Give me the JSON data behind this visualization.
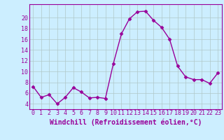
{
  "x": [
    0,
    1,
    2,
    3,
    4,
    5,
    6,
    7,
    8,
    9,
    10,
    11,
    12,
    13,
    14,
    15,
    16,
    17,
    18,
    19,
    20,
    21,
    22,
    23
  ],
  "y": [
    7.2,
    5.2,
    5.7,
    4.0,
    5.2,
    7.0,
    6.2,
    5.1,
    5.2,
    5.0,
    11.5,
    17.0,
    19.8,
    21.1,
    21.2,
    19.5,
    18.2,
    16.0,
    11.0,
    9.0,
    8.5,
    8.5,
    7.8,
    9.7
  ],
  "line_color": "#990099",
  "marker": "D",
  "markersize": 2.5,
  "linewidth": 1.0,
  "bg_color": "#cceeff",
  "grid_color": "#b0c8c8",
  "xlabel": "Windchill (Refroidissement éolien,°C)",
  "xlabel_fontsize": 7,
  "tick_fontsize": 6,
  "yticks": [
    4,
    6,
    8,
    10,
    12,
    14,
    16,
    18,
    20
  ],
  "ylim": [
    3.0,
    22.5
  ],
  "xlim": [
    -0.5,
    23.5
  ],
  "tick_color": "#990099",
  "label_color": "#990099"
}
